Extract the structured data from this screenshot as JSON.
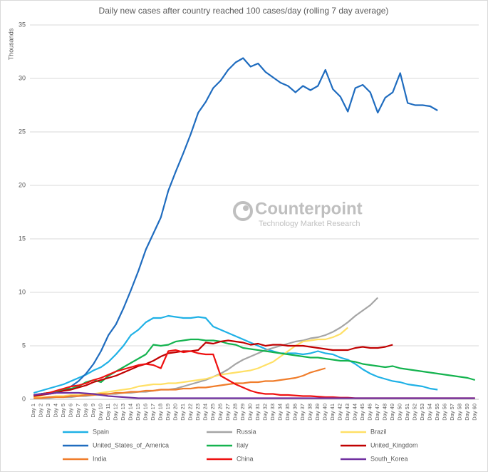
{
  "chart_data": {
    "type": "line",
    "title": "Daily new cases after country reached 100 cases/day (rolling 7 day average)",
    "ylabel": "Thousands",
    "watermark": {
      "name": "Counterpoint",
      "tagline": "Technology Market Research"
    },
    "categories": [
      "Day 1",
      "Day 2",
      "Day 3",
      "Day 4",
      "Day 5",
      "Day 6",
      "Day 7",
      "Day 8",
      "Day 9",
      "Day 10",
      "Day 11",
      "Day 12",
      "Day 13",
      "Day 14",
      "Day 15",
      "Day 16",
      "Day 17",
      "Day 18",
      "Day 19",
      "Day 20",
      "Day 21",
      "Day 22",
      "Day 23",
      "Day 24",
      "Day 25",
      "Day 26",
      "Day 27",
      "Day 28",
      "Day 29",
      "Day 30",
      "Day 31",
      "Day 32",
      "Day 33",
      "Day 34",
      "Day 35",
      "Day 36",
      "Day 37",
      "Day 38",
      "Day 39",
      "Day 40",
      "Day 41",
      "Day 42",
      "Day 43",
      "Day 44",
      "Day 45",
      "Day 46",
      "Day 47",
      "Day 48",
      "Day 49",
      "Day 50",
      "Day 51",
      "Day 52",
      "Day 53",
      "Day 54",
      "Day 55",
      "Day 56",
      "Day 57",
      "Day 58",
      "Day 59",
      "Day 60"
    ],
    "ylim": [
      0,
      35
    ],
    "yticks": [
      0,
      5,
      10,
      15,
      20,
      25,
      30,
      35
    ],
    "grid": true,
    "series": [
      {
        "name": "Spain",
        "color": "#1fb1e6",
        "values": [
          0.6,
          0.8,
          1.0,
          1.2,
          1.4,
          1.7,
          2.0,
          2.3,
          2.7,
          3.0,
          3.5,
          4.2,
          5.0,
          6.0,
          6.5,
          7.2,
          7.6,
          7.6,
          7.8,
          7.7,
          7.6,
          7.6,
          7.7,
          7.6,
          6.8,
          6.5,
          6.2,
          5.9,
          5.6,
          5.3,
          5.0,
          4.7,
          4.5,
          4.3,
          4.3,
          4.3,
          4.2,
          4.3,
          4.5,
          4.3,
          4.2,
          3.9,
          3.7,
          3.3,
          2.8,
          2.4,
          2.1,
          1.9,
          1.7,
          1.6,
          1.4,
          1.3,
          1.2,
          1.0,
          0.9,
          null,
          null,
          null,
          null,
          null
        ]
      },
      {
        "name": "Russia",
        "color": "#a5a5a5",
        "values": [
          0.1,
          0.1,
          0.1,
          0.2,
          0.2,
          0.2,
          0.3,
          0.3,
          0.4,
          0.4,
          0.5,
          0.5,
          0.6,
          0.6,
          0.7,
          0.7,
          0.8,
          0.9,
          0.9,
          1.0,
          1.2,
          1.4,
          1.6,
          1.8,
          2.1,
          2.4,
          2.8,
          3.3,
          3.7,
          4.0,
          4.3,
          4.6,
          4.8,
          5.0,
          5.2,
          5.4,
          5.5,
          5.7,
          5.8,
          6.0,
          6.3,
          6.7,
          7.2,
          7.8,
          8.3,
          8.8,
          9.5,
          null,
          null,
          null,
          null,
          null,
          null,
          null,
          null,
          null,
          null,
          null,
          null,
          null
        ]
      },
      {
        "name": "Brazil",
        "color": "#ffe066",
        "values": [
          0.2,
          0.2,
          0.2,
          0.3,
          0.3,
          0.4,
          0.4,
          0.5,
          0.5,
          0.6,
          0.7,
          0.8,
          0.9,
          1.0,
          1.2,
          1.3,
          1.4,
          1.4,
          1.5,
          1.5,
          1.6,
          1.7,
          1.8,
          1.9,
          2.1,
          2.3,
          2.4,
          2.5,
          2.6,
          2.7,
          2.9,
          3.2,
          3.5,
          4.0,
          4.5,
          5.0,
          5.4,
          5.5,
          5.6,
          5.6,
          5.8,
          6.1,
          6.7,
          null,
          null,
          null,
          null,
          null,
          null,
          null,
          null,
          null,
          null,
          null,
          null,
          null,
          null,
          null,
          null,
          null
        ]
      },
      {
        "name": "United_States_of_America",
        "color": "#1f6cbf",
        "values": [
          0.3,
          0.5,
          0.6,
          0.7,
          0.9,
          1.2,
          1.7,
          2.4,
          3.3,
          4.5,
          6.0,
          7.0,
          8.5,
          10.2,
          12.0,
          14.0,
          15.5,
          17.0,
          19.5,
          21.3,
          23.0,
          24.8,
          26.8,
          27.8,
          29.1,
          29.8,
          30.8,
          31.5,
          31.9,
          31.1,
          31.4,
          30.6,
          30.1,
          29.6,
          29.3,
          28.7,
          29.3,
          28.9,
          29.3,
          30.8,
          29.0,
          28.3,
          26.9,
          29.1,
          29.4,
          28.7,
          26.8,
          28.2,
          28.7,
          30.5,
          27.7,
          27.5,
          27.5,
          27.4,
          27.0,
          null,
          null,
          null,
          null,
          null
        ]
      },
      {
        "name": "Italy",
        "color": "#14b34f",
        "values": [
          0.4,
          0.5,
          0.6,
          0.7,
          0.9,
          1.0,
          1.2,
          1.6,
          1.8,
          1.6,
          2.2,
          2.6,
          3.0,
          3.4,
          3.8,
          4.2,
          5.1,
          5.0,
          5.1,
          5.4,
          5.5,
          5.6,
          5.6,
          5.5,
          5.5,
          5.4,
          5.2,
          5.1,
          4.8,
          4.7,
          4.6,
          4.5,
          4.4,
          4.3,
          4.2,
          4.1,
          4.0,
          3.9,
          3.9,
          3.8,
          3.7,
          3.6,
          3.6,
          3.5,
          3.3,
          3.2,
          3.1,
          3.0,
          3.1,
          2.9,
          2.8,
          2.7,
          2.6,
          2.5,
          2.4,
          2.3,
          2.2,
          2.1,
          2.0,
          1.8
        ]
      },
      {
        "name": "United_Kingdom",
        "color": "#c00000",
        "values": [
          0.3,
          0.4,
          0.5,
          0.6,
          0.8,
          0.9,
          1.1,
          1.3,
          1.6,
          1.8,
          2.0,
          2.2,
          2.5,
          2.8,
          3.1,
          3.3,
          3.6,
          4.0,
          4.3,
          4.4,
          4.5,
          4.5,
          4.6,
          5.3,
          5.2,
          5.4,
          5.5,
          5.4,
          5.3,
          5.1,
          5.2,
          5.0,
          5.1,
          5.1,
          5.0,
          5.0,
          5.0,
          4.9,
          4.8,
          4.7,
          4.6,
          4.6,
          4.6,
          4.8,
          4.9,
          4.8,
          4.8,
          4.9,
          5.1,
          null,
          null,
          null,
          null,
          null,
          null,
          null,
          null,
          null,
          null,
          null
        ]
      },
      {
        "name": "India",
        "color": "#f07d2b",
        "values": [
          0.1,
          0.1,
          0.2,
          0.2,
          0.2,
          0.3,
          0.3,
          0.4,
          0.4,
          0.5,
          0.5,
          0.6,
          0.6,
          0.7,
          0.7,
          0.8,
          0.8,
          0.9,
          0.9,
          0.9,
          1.0,
          1.0,
          1.1,
          1.1,
          1.2,
          1.3,
          1.4,
          1.5,
          1.5,
          1.6,
          1.6,
          1.7,
          1.7,
          1.8,
          1.9,
          2.0,
          2.2,
          2.5,
          2.7,
          2.9,
          null,
          null,
          null,
          null,
          null,
          null,
          null,
          null,
          null,
          null,
          null,
          null,
          null,
          null,
          null,
          null,
          null,
          null,
          null,
          null
        ]
      },
      {
        "name": "China",
        "color": "#ee1111",
        "values": [
          0.4,
          0.5,
          0.6,
          0.8,
          1.0,
          1.2,
          1.3,
          1.5,
          1.8,
          2.0,
          2.3,
          2.6,
          2.8,
          3.0,
          3.2,
          3.3,
          3.2,
          2.9,
          4.5,
          4.6,
          4.4,
          4.5,
          4.3,
          4.2,
          4.2,
          2.2,
          1.8,
          1.4,
          1.1,
          0.8,
          0.6,
          0.5,
          0.5,
          0.4,
          0.4,
          0.35,
          0.3,
          0.3,
          0.25,
          0.2,
          0.2,
          0.15,
          0.15,
          0.1,
          0.1,
          0.1,
          0.1,
          0.1,
          0.1,
          0.1,
          0.1,
          0.1,
          0.1,
          0.1,
          0.1,
          0.1,
          0.1,
          0.1,
          0.1,
          0.1
        ]
      },
      {
        "name": "South_Korea",
        "color": "#7030a0",
        "values": [
          0.4,
          0.5,
          0.5,
          0.6,
          0.6,
          0.6,
          0.6,
          0.55,
          0.5,
          0.4,
          0.3,
          0.25,
          0.2,
          0.15,
          0.1,
          0.1,
          0.1,
          0.1,
          0.1,
          0.1,
          0.1,
          0.1,
          0.1,
          0.1,
          0.1,
          0.1,
          0.1,
          0.1,
          0.1,
          0.1,
          0.1,
          0.1,
          0.1,
          0.1,
          0.1,
          0.1,
          0.1,
          0.1,
          0.1,
          0.1,
          0.1,
          0.1,
          0.1,
          0.1,
          0.1,
          0.1,
          0.1,
          0.1,
          0.1,
          0.1,
          0.1,
          0.1,
          0.1,
          0.1,
          0.1,
          0.1,
          0.1,
          0.1,
          0.1,
          0.1
        ]
      }
    ]
  }
}
